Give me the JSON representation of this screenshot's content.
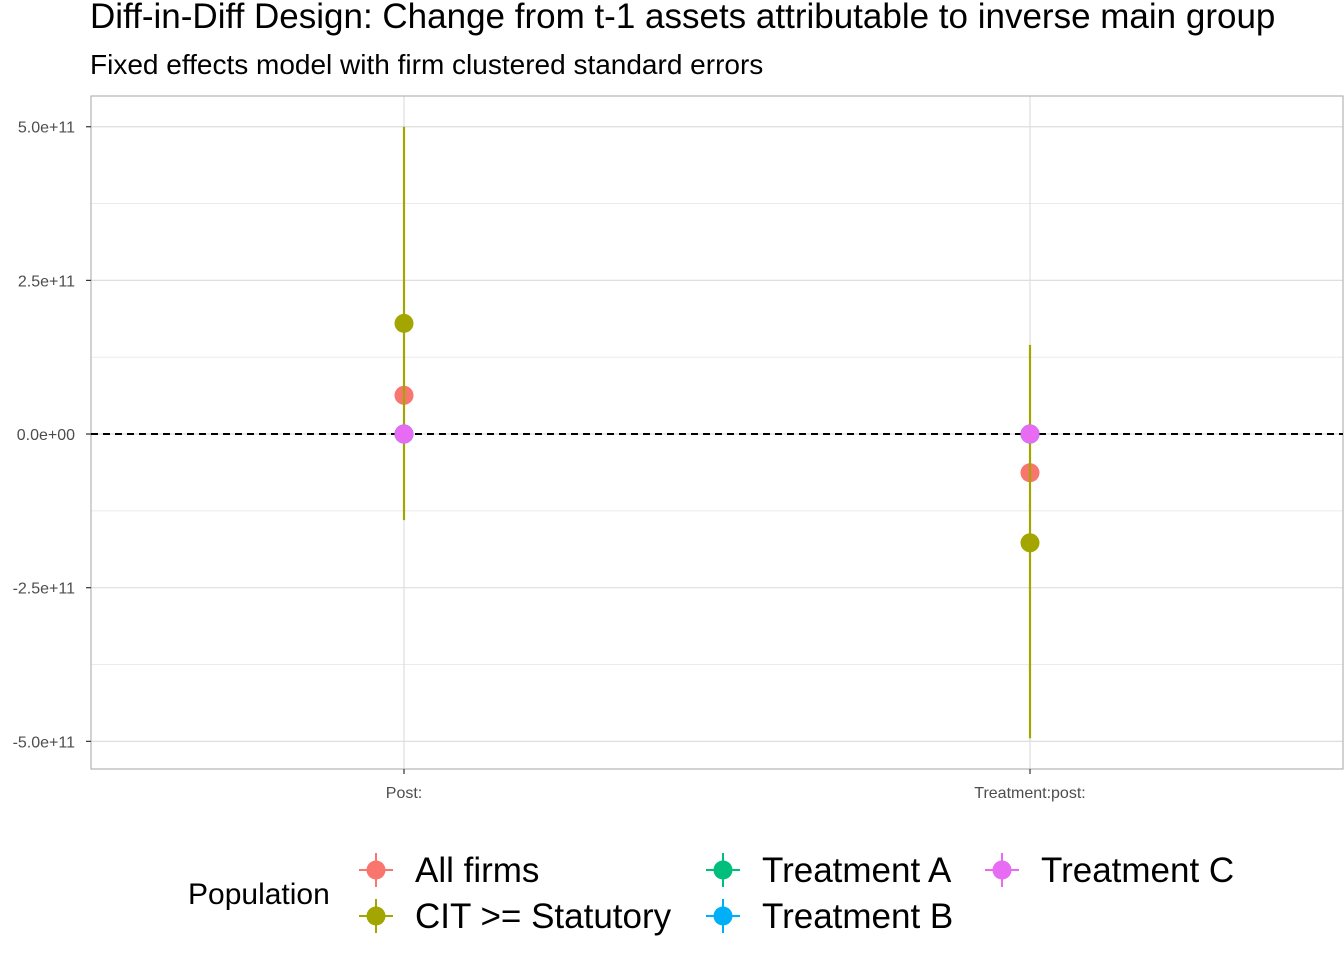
{
  "chart_data": {
    "type": "scatter",
    "title": "Diff-in-Diff Design: Change from t-1 assets attributable to inverse main group",
    "subtitle": "Fixed effects model with firm clustered standard errors",
    "xlabel": "",
    "ylabel": "",
    "categories": [
      "Post:",
      "Treatment:post:"
    ],
    "ylim": [
      -545000000000.0,
      550000000000.0
    ],
    "y_ticks": [
      500000000000.0,
      250000000000.0,
      0,
      -250000000000.0,
      -500000000000.0
    ],
    "y_tick_labels": [
      "5.0e+11",
      "2.5e+11",
      "0.0e+00",
      "-2.5e+11",
      "-5.0e+11"
    ],
    "reference_line": 0,
    "grid": true,
    "legend": {
      "title": "Population",
      "position": "bottom"
    },
    "series": [
      {
        "name": "All firms",
        "color": "#F8766D",
        "estimates": [
          63000000000.0,
          -63000000000.0
        ],
        "lower": [
          63000000000.0,
          -63000000000.0
        ],
        "upper": [
          63000000000.0,
          -63000000000.0
        ]
      },
      {
        "name": "CIT >= Statutory",
        "color": "#A3A500",
        "estimates": [
          180000000000.0,
          -177000000000.0
        ],
        "lower": [
          -140000000000.0,
          -495000000000.0
        ],
        "upper": [
          500000000000.0,
          145000000000.0
        ]
      },
      {
        "name": "Treatment A",
        "color": "#00BF7D",
        "estimates": [
          0,
          0
        ],
        "lower": [
          0,
          0
        ],
        "upper": [
          0,
          0
        ]
      },
      {
        "name": "Treatment B",
        "color": "#00B0F6",
        "estimates": [
          0,
          0
        ],
        "lower": [
          0,
          0
        ],
        "upper": [
          0,
          0
        ]
      },
      {
        "name": "Treatment C",
        "color": "#E76BF3",
        "estimates": [
          0,
          0
        ],
        "lower": [
          0,
          0
        ],
        "upper": [
          0,
          0
        ]
      }
    ]
  }
}
